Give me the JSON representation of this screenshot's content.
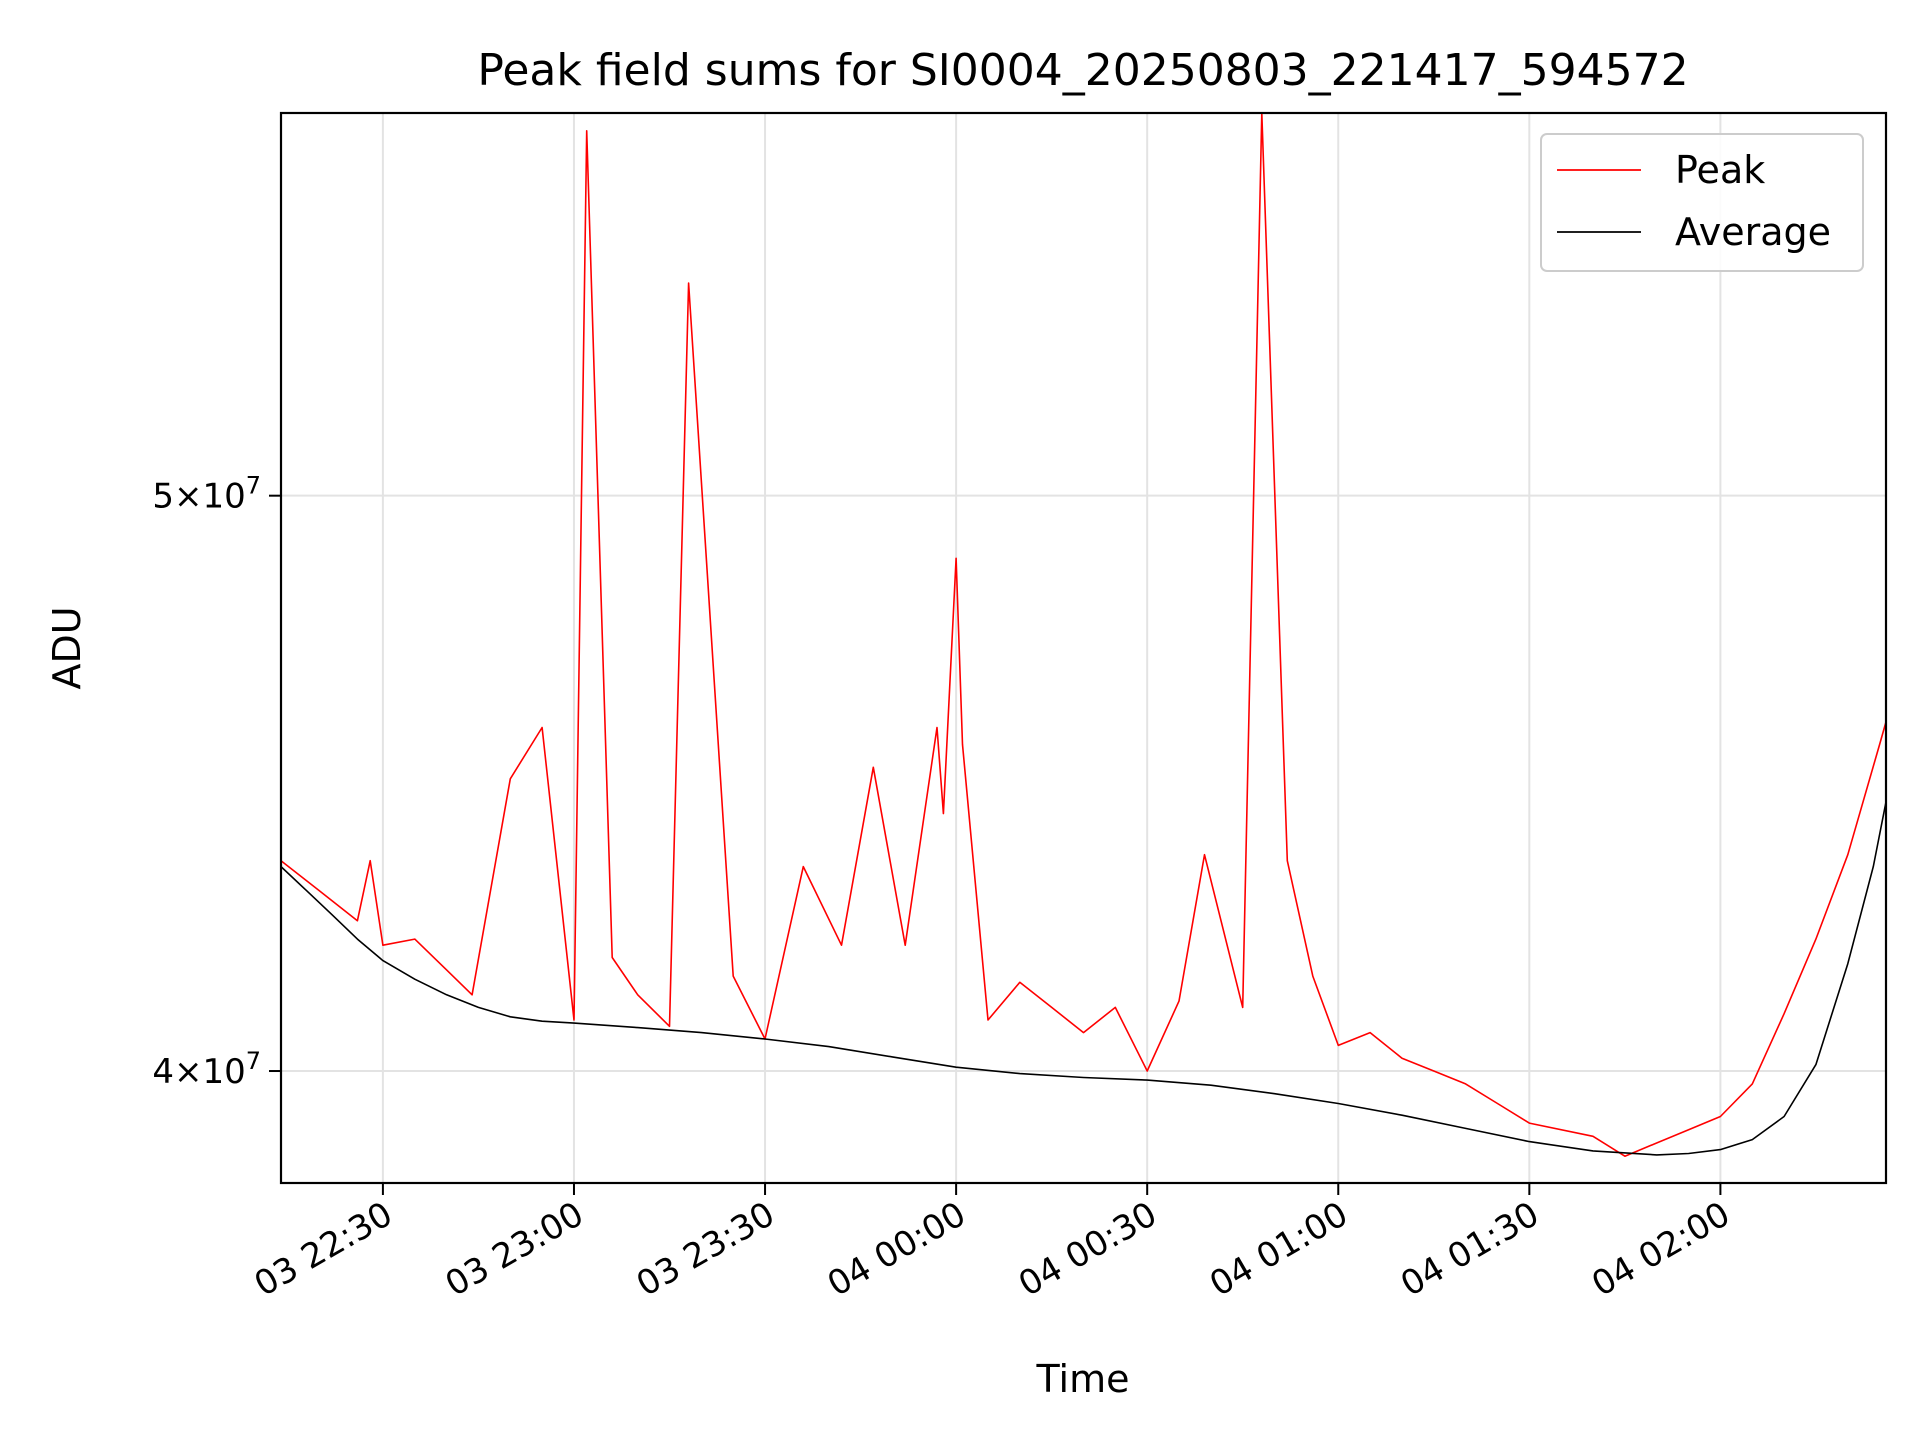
{
  "chart_data": {
    "type": "line",
    "title": "Peak field sums for SI0004_20250803_221417_594572",
    "xlabel": "Time",
    "ylabel": "ADU",
    "x_ticks": [
      "03 22:30",
      "03 23:00",
      "03 23:30",
      "04 00:00",
      "04 00:30",
      "04 01:00",
      "04 01:30",
      "04 02:00"
    ],
    "y_ticks": [
      {
        "value": 40000000,
        "mantissa": "4",
        "base": "10",
        "exp": "7"
      },
      {
        "value": 50000000,
        "mantissa": "5",
        "base": "10",
        "exp": "7"
      }
    ],
    "xlim": [
      "03 22:14",
      "04 02:26"
    ],
    "ylim": [
      38300000,
      58000000
    ],
    "yscale": "log",
    "grid": true,
    "legend_position": "upper right",
    "series": [
      {
        "name": "Peak",
        "color": "#ff0000",
        "points": [
          [
            "03 22:14",
            43400000
          ],
          [
            "03 22:20",
            42900000
          ],
          [
            "03 22:26",
            42400000
          ],
          [
            "03 22:28",
            43400000
          ],
          [
            "03 22:30",
            42000000
          ],
          [
            "03 22:35",
            42100000
          ],
          [
            "03 22:40",
            41600000
          ],
          [
            "03 22:44",
            41200000
          ],
          [
            "03 22:50",
            44800000
          ],
          [
            "03 22:55",
            45700000
          ],
          [
            "03 23:00",
            40800000
          ],
          [
            "03 23:02",
            57600000
          ],
          [
            "03 23:06",
            41800000
          ],
          [
            "03 23:10",
            41200000
          ],
          [
            "03 23:15",
            40700000
          ],
          [
            "03 23:18",
            54300000
          ],
          [
            "03 23:25",
            41500000
          ],
          [
            "03 23:30",
            40500000
          ],
          [
            "03 23:36",
            43300000
          ],
          [
            "03 23:42",
            42000000
          ],
          [
            "03 23:47",
            45000000
          ],
          [
            "03 23:52",
            42000000
          ],
          [
            "03 23:57",
            45700000
          ],
          [
            "03 23:58",
            44200000
          ],
          [
            "04 00:00",
            48800000
          ],
          [
            "04 00:01",
            45400000
          ],
          [
            "04 00:05",
            40800000
          ],
          [
            "04 00:10",
            41400000
          ],
          [
            "04 00:15",
            41000000
          ],
          [
            "04 00:20",
            40600000
          ],
          [
            "04 00:25",
            41000000
          ],
          [
            "04 00:30",
            40000000
          ],
          [
            "04 00:35",
            41100000
          ],
          [
            "04 00:39",
            43500000
          ],
          [
            "04 00:45",
            41000000
          ],
          [
            "04 00:48",
            58000000
          ],
          [
            "04 00:52",
            43400000
          ],
          [
            "04 00:56",
            41500000
          ],
          [
            "04 01:00",
            40400000
          ],
          [
            "04 01:05",
            40600000
          ],
          [
            "04 01:10",
            40200000
          ],
          [
            "04 01:15",
            40000000
          ],
          [
            "04 01:20",
            39800000
          ],
          [
            "04 01:25",
            39500000
          ],
          [
            "04 01:30",
            39200000
          ],
          [
            "04 01:40",
            39000000
          ],
          [
            "04 01:45",
            38700000
          ],
          [
            "04 01:55",
            39100000
          ],
          [
            "04 02:00",
            39300000
          ],
          [
            "04 02:05",
            39800000
          ],
          [
            "04 02:10",
            40900000
          ],
          [
            "04 02:15",
            42100000
          ],
          [
            "04 02:20",
            43500000
          ],
          [
            "04 02:25",
            45400000
          ],
          [
            "04 02:26",
            45800000
          ]
        ]
      },
      {
        "name": "Average",
        "color": "#000000",
        "points": [
          [
            "03 22:14",
            43300000
          ],
          [
            "03 22:18",
            42900000
          ],
          [
            "03 22:22",
            42500000
          ],
          [
            "03 22:26",
            42100000
          ],
          [
            "03 22:30",
            41750000
          ],
          [
            "03 22:35",
            41450000
          ],
          [
            "03 22:40",
            41200000
          ],
          [
            "03 22:45",
            41000000
          ],
          [
            "03 22:50",
            40850000
          ],
          [
            "03 22:55",
            40780000
          ],
          [
            "03 23:00",
            40750000
          ],
          [
            "03 23:10",
            40680000
          ],
          [
            "03 23:20",
            40600000
          ],
          [
            "03 23:30",
            40500000
          ],
          [
            "03 23:40",
            40380000
          ],
          [
            "03 23:50",
            40220000
          ],
          [
            "04 00:00",
            40060000
          ],
          [
            "04 00:10",
            39960000
          ],
          [
            "04 00:20",
            39900000
          ],
          [
            "04 00:30",
            39860000
          ],
          [
            "04 00:40",
            39780000
          ],
          [
            "04 00:50",
            39650000
          ],
          [
            "04 01:00",
            39500000
          ],
          [
            "04 01:10",
            39320000
          ],
          [
            "04 01:20",
            39120000
          ],
          [
            "04 01:30",
            38920000
          ],
          [
            "04 01:40",
            38780000
          ],
          [
            "04 01:50",
            38720000
          ],
          [
            "04 01:55",
            38740000
          ],
          [
            "04 02:00",
            38800000
          ],
          [
            "04 02:05",
            38950000
          ],
          [
            "04 02:10",
            39300000
          ],
          [
            "04 02:15",
            40100000
          ],
          [
            "04 02:20",
            41700000
          ],
          [
            "04 02:24",
            43300000
          ],
          [
            "04 02:26",
            44400000
          ]
        ]
      }
    ]
  }
}
